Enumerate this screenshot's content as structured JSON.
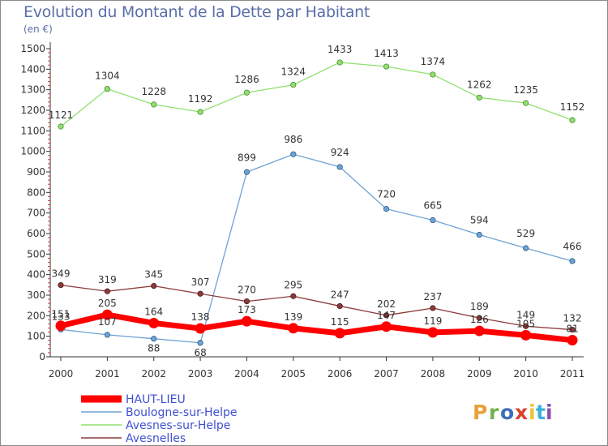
{
  "title": "Evolution du Montant de la Dette par Habitant",
  "subtitle": "(en €)",
  "logo": {
    "text": "Proxiti",
    "colors": [
      "#e8a13a",
      "#6fb44a",
      "#3b6fb8",
      "#d9432e",
      "#e8c53a",
      "#3bb0d8",
      "#8a4fb0"
    ]
  },
  "chart_data": {
    "type": "line",
    "title": "Evolution du Montant de la Dette par Habitant",
    "subtitle": "(en €)",
    "xlabel": "",
    "ylabel": "",
    "x": [
      "2000",
      "2001",
      "2002",
      "2003",
      "2004",
      "2005",
      "2006",
      "2007",
      "2008",
      "2009",
      "2010",
      "2011"
    ],
    "ylim": [
      0,
      1500
    ],
    "yticks": [
      0,
      100,
      200,
      300,
      400,
      500,
      600,
      700,
      800,
      900,
      1000,
      1100,
      1200,
      1300,
      1400,
      1500
    ],
    "grid": false,
    "legend_position": "bottom-left",
    "series": [
      {
        "name": "HAUT-LIEU",
        "color": "#ff0000",
        "values": [
          151,
          205,
          164,
          138,
          173,
          139,
          115,
          147,
          119,
          126,
          105,
          81
        ],
        "labels": [
          "151",
          "205",
          "164",
          "138",
          "173",
          "139",
          "115",
          "147",
          "119",
          "126",
          "105",
          "81"
        ]
      },
      {
        "name": "Boulogne-sur-Helpe",
        "color": "#6fa3d4",
        "values": [
          133,
          107,
          88,
          68,
          899,
          986,
          924,
          720,
          665,
          594,
          529,
          466
        ],
        "labels": [
          "133",
          "107",
          "88",
          "68",
          "899",
          "986",
          "924",
          "720",
          "665",
          "594",
          "529",
          "466"
        ]
      },
      {
        "name": "Avesnes-sur-Helpe",
        "color": "#90e070",
        "values": [
          1121,
          1304,
          1228,
          1192,
          1286,
          1324,
          1433,
          1413,
          1374,
          1262,
          1235,
          1152
        ],
        "labels": [
          "1121",
          "1304",
          "1228",
          "1192",
          "1286",
          "1324",
          "1433",
          "1413",
          "1374",
          "1262",
          "1235",
          "1152"
        ]
      },
      {
        "name": "Avesnelles",
        "color": "#8b3a3a",
        "values": [
          349,
          319,
          345,
          307,
          270,
          295,
          247,
          202,
          237,
          189,
          149,
          132
        ],
        "labels": [
          "349",
          "319",
          "345",
          "307",
          "270",
          "295",
          "247",
          "202",
          "237",
          "189",
          "149",
          "132"
        ]
      }
    ]
  }
}
